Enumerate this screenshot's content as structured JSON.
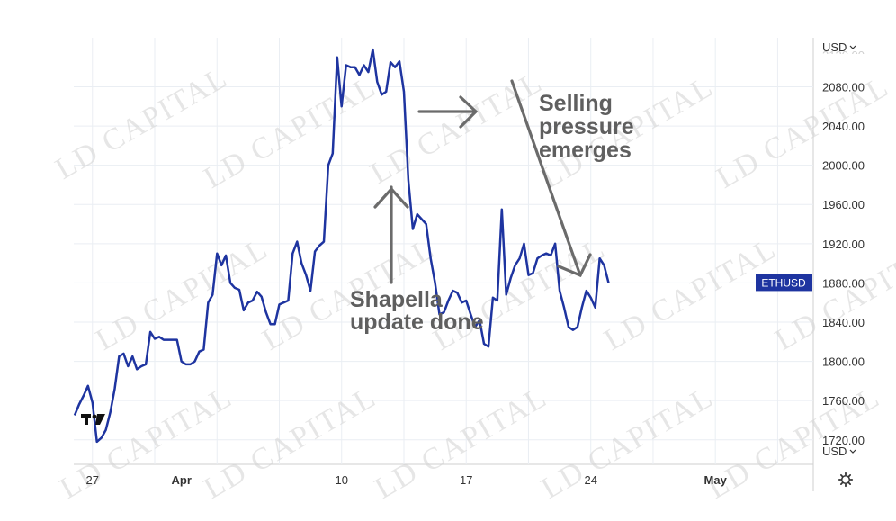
{
  "chart_data": {
    "type": "line",
    "symbol_tag": "ETHUSD",
    "currency_label": "USD",
    "currency_label_lower": "USD",
    "y_ticks": [
      1720,
      1760,
      1800,
      1840,
      1880,
      1920,
      1960,
      2000,
      2040,
      2080
    ],
    "y_tick_labels": [
      "1720.00",
      "1760.00",
      "1800.00",
      "1840.00",
      "1880.00",
      "1920.00",
      "1960.00",
      "2000.00",
      "2040.00",
      "2080.00"
    ],
    "x_ticks": [
      {
        "label": "27",
        "bold": false,
        "x": 0
      },
      {
        "label": "Apr",
        "bold": true,
        "x": 5
      },
      {
        "label": "10",
        "bold": false,
        "x": 14
      },
      {
        "label": "17",
        "bold": false,
        "x": 21
      },
      {
        "label": "24",
        "bold": false,
        "x": 28
      },
      {
        "label": "May",
        "bold": true,
        "x": 35
      }
    ],
    "ylim": [
      1695,
      2130
    ],
    "xlim": [
      -1.05,
      40.5
    ],
    "line_color": "#1e34a0",
    "last_value": 1880,
    "values": [
      [
        -1.0,
        1745
      ],
      [
        -0.75,
        1756
      ],
      [
        -0.5,
        1765
      ],
      [
        -0.25,
        1775
      ],
      [
        0.0,
        1758
      ],
      [
        0.25,
        1718
      ],
      [
        0.5,
        1722
      ],
      [
        0.75,
        1730
      ],
      [
        1.0,
        1748
      ],
      [
        1.25,
        1772
      ],
      [
        1.5,
        1805
      ],
      [
        1.75,
        1808
      ],
      [
        2.0,
        1795
      ],
      [
        2.25,
        1805
      ],
      [
        2.5,
        1792
      ],
      [
        2.75,
        1795
      ],
      [
        3.0,
        1797
      ],
      [
        3.25,
        1830
      ],
      [
        3.5,
        1823
      ],
      [
        3.75,
        1825
      ],
      [
        4.0,
        1822
      ],
      [
        4.25,
        1822
      ],
      [
        4.5,
        1822
      ],
      [
        4.75,
        1822
      ],
      [
        5.0,
        1800
      ],
      [
        5.25,
        1797
      ],
      [
        5.5,
        1797
      ],
      [
        5.75,
        1800
      ],
      [
        6.0,
        1810
      ],
      [
        6.25,
        1812
      ],
      [
        6.5,
        1860
      ],
      [
        6.75,
        1868
      ],
      [
        7.0,
        1910
      ],
      [
        7.25,
        1898
      ],
      [
        7.5,
        1908
      ],
      [
        7.75,
        1880
      ],
      [
        8.0,
        1875
      ],
      [
        8.25,
        1873
      ],
      [
        8.5,
        1852
      ],
      [
        8.75,
        1860
      ],
      [
        9.0,
        1862
      ],
      [
        9.25,
        1871
      ],
      [
        9.5,
        1866
      ],
      [
        9.75,
        1850
      ],
      [
        10.0,
        1838
      ],
      [
        10.25,
        1838
      ],
      [
        10.5,
        1858
      ],
      [
        10.75,
        1860
      ],
      [
        11.0,
        1862
      ],
      [
        11.25,
        1910
      ],
      [
        11.5,
        1922
      ],
      [
        11.75,
        1900
      ],
      [
        12.0,
        1888
      ],
      [
        12.25,
        1872
      ],
      [
        12.5,
        1912
      ],
      [
        12.75,
        1918
      ],
      [
        13.0,
        1922
      ],
      [
        13.25,
        2000
      ],
      [
        13.5,
        2012
      ],
      [
        13.75,
        2110
      ],
      [
        14.0,
        2060
      ],
      [
        14.25,
        2102
      ],
      [
        14.5,
        2100
      ],
      [
        14.75,
        2100
      ],
      [
        15.0,
        2092
      ],
      [
        15.25,
        2102
      ],
      [
        15.5,
        2095
      ],
      [
        15.75,
        2118
      ],
      [
        16.0,
        2085
      ],
      [
        16.25,
        2072
      ],
      [
        16.5,
        2075
      ],
      [
        16.75,
        2105
      ],
      [
        17.0,
        2100
      ],
      [
        17.25,
        2106
      ],
      [
        17.5,
        2075
      ],
      [
        17.75,
        1985
      ],
      [
        18.0,
        1935
      ],
      [
        18.25,
        1950
      ],
      [
        18.5,
        1945
      ],
      [
        18.75,
        1940
      ],
      [
        19.0,
        1905
      ],
      [
        19.25,
        1880
      ],
      [
        19.5,
        1848
      ],
      [
        19.75,
        1850
      ],
      [
        20.0,
        1862
      ],
      [
        20.25,
        1872
      ],
      [
        20.5,
        1870
      ],
      [
        20.75,
        1860
      ],
      [
        21.0,
        1862
      ],
      [
        21.25,
        1848
      ],
      [
        21.5,
        1835
      ],
      [
        21.75,
        1842
      ],
      [
        22.0,
        1818
      ],
      [
        22.25,
        1815
      ],
      [
        22.5,
        1865
      ],
      [
        22.75,
        1862
      ],
      [
        23.0,
        1955
      ],
      [
        23.25,
        1868
      ],
      [
        23.5,
        1885
      ],
      [
        23.75,
        1898
      ],
      [
        24.0,
        1905
      ],
      [
        24.25,
        1920
      ],
      [
        24.5,
        1888
      ],
      [
        24.75,
        1890
      ],
      [
        25.0,
        1905
      ],
      [
        25.25,
        1908
      ],
      [
        25.5,
        1910
      ],
      [
        25.75,
        1908
      ],
      [
        26.0,
        1920
      ],
      [
        26.25,
        1872
      ],
      [
        26.5,
        1855
      ],
      [
        26.75,
        1835
      ],
      [
        27.0,
        1832
      ],
      [
        27.25,
        1835
      ],
      [
        27.5,
        1855
      ],
      [
        27.75,
        1872
      ],
      [
        28.0,
        1865
      ],
      [
        28.25,
        1855
      ],
      [
        28.5,
        1905
      ],
      [
        28.75,
        1898
      ],
      [
        29.0,
        1880
      ]
    ]
  },
  "annotations": {
    "shapella_line1": "Shapella",
    "shapella_line2": "update done",
    "selling_line1": "Selling",
    "selling_line2": "pressure",
    "selling_line3": "emerges"
  },
  "watermark_text": "CAPITAL",
  "watermark_logo": "LD",
  "icons": {
    "logo": "tradingview-logo-icon",
    "settings": "gear-icon",
    "dropdown": "chevron-down-icon"
  }
}
